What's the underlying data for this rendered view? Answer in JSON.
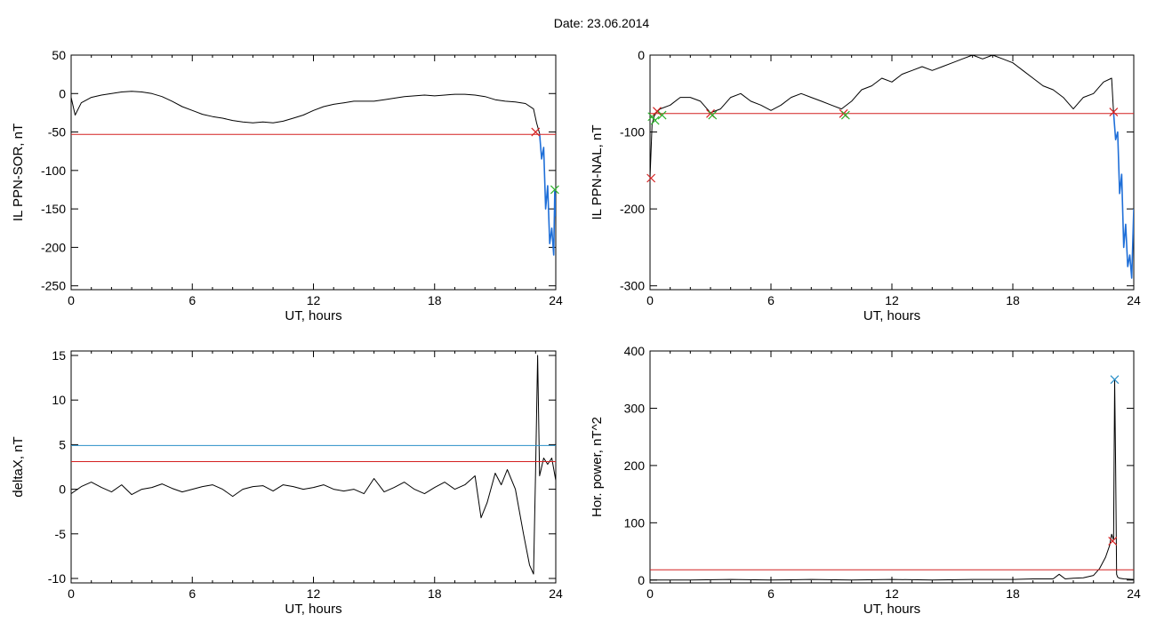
{
  "page_title": "Date:  23.06.2014",
  "colors": {
    "data": "#000000",
    "red_threshold": "#d42020",
    "blue_threshold": "#2a8fc7",
    "storm_segment": "#1f6fd8",
    "marker_green": "#2db22d"
  },
  "chart_data": [
    {
      "type": "line",
      "ylabel": "IL PPN-SOR, nT",
      "xlabel": "UT, hours",
      "xlim": [
        0,
        24
      ],
      "ylim": [
        -255,
        50
      ],
      "xticks": [
        0,
        6,
        12,
        18,
        24
      ],
      "yticks": [
        50,
        0,
        -50,
        -100,
        -150,
        -200,
        -250
      ],
      "grid": false,
      "series": [
        {
          "role": "data",
          "x": [
            0,
            0.2,
            0.5,
            1,
            1.5,
            2,
            2.5,
            3,
            3.5,
            4,
            4.5,
            5,
            5.5,
            6,
            6.5,
            7,
            7.5,
            8,
            8.5,
            9,
            9.5,
            10,
            10.5,
            11,
            11.5,
            12,
            12.5,
            13,
            13.5,
            14,
            14.5,
            15,
            15.5,
            16,
            16.5,
            17,
            17.5,
            18,
            18.5,
            19,
            19.5,
            20,
            20.5,
            21,
            21.5,
            22,
            22.5,
            22.9,
            23.05,
            23.2
          ],
          "y": [
            -5,
            -28,
            -12,
            -5,
            -2,
            0,
            2,
            3,
            2,
            0,
            -4,
            -10,
            -17,
            -22,
            -27,
            -30,
            -32,
            -35,
            -37,
            -38,
            -37,
            -38,
            -36,
            -32,
            -28,
            -22,
            -17,
            -14,
            -12,
            -10,
            -10,
            -10,
            -8,
            -6,
            -4,
            -3,
            -2,
            -3,
            -2,
            -1,
            -1,
            -2,
            -4,
            -8,
            -10,
            -11,
            -13,
            -20,
            -38,
            -52
          ]
        },
        {
          "role": "storm",
          "x": [
            23.2,
            23.3,
            23.4,
            23.5,
            23.6,
            23.7,
            23.8,
            23.9,
            23.95,
            24
          ],
          "y": [
            -52,
            -85,
            -70,
            -150,
            -120,
            -195,
            -175,
            -210,
            -125,
            -160
          ]
        },
        {
          "role": "threshold",
          "x": [
            0,
            24
          ],
          "y": [
            -53,
            -53
          ]
        }
      ],
      "markers": [
        {
          "x": 23.0,
          "y": -50,
          "color": "#d42020"
        },
        {
          "x": 23.95,
          "y": -125,
          "color": "#2db22d"
        }
      ]
    },
    {
      "type": "line",
      "ylabel": "IL PPN-NAL, nT",
      "xlabel": "UT, hours",
      "xlim": [
        0,
        24
      ],
      "ylim": [
        -305,
        0
      ],
      "xticks": [
        0,
        6,
        12,
        18,
        24
      ],
      "yticks": [
        0,
        -100,
        -200,
        -300
      ],
      "grid": false,
      "series": [
        {
          "role": "data",
          "x": [
            0,
            0.1,
            0.2,
            0.3,
            0.5,
            1,
            1.5,
            2,
            2.5,
            3,
            3.5,
            4,
            4.5,
            5,
            5.5,
            6,
            6.5,
            7,
            7.5,
            8,
            8.5,
            9,
            9.5,
            10,
            10.5,
            11,
            11.5,
            12,
            12.5,
            13,
            13.5,
            14,
            14.5,
            15,
            15.5,
            16,
            16.5,
            17,
            17.5,
            18,
            18.5,
            19,
            19.5,
            20,
            20.5,
            21,
            21.5,
            22,
            22.5,
            22.9,
            23.0
          ],
          "y": [
            -160,
            -90,
            -80,
            -75,
            -70,
            -65,
            -55,
            -55,
            -60,
            -75,
            -70,
            -55,
            -50,
            -60,
            -65,
            -72,
            -65,
            -55,
            -50,
            -55,
            -60,
            -65,
            -70,
            -60,
            -45,
            -40,
            -30,
            -35,
            -25,
            -20,
            -15,
            -20,
            -15,
            -10,
            -5,
            0,
            -5,
            0,
            -5,
            -10,
            -20,
            -30,
            -40,
            -45,
            -55,
            -70,
            -55,
            -50,
            -35,
            -30,
            -75
          ]
        },
        {
          "role": "storm",
          "x": [
            23.0,
            23.1,
            23.2,
            23.3,
            23.4,
            23.5,
            23.6,
            23.7,
            23.8,
            23.9,
            24
          ],
          "y": [
            -75,
            -110,
            -100,
            -180,
            -155,
            -250,
            -220,
            -275,
            -260,
            -290,
            -200
          ]
        },
        {
          "role": "threshold",
          "x": [
            0,
            24
          ],
          "y": [
            -76,
            -76
          ]
        }
      ],
      "markers": [
        {
          "x": 0.05,
          "y": -160,
          "color": "#d42020"
        },
        {
          "x": 0.1,
          "y": -80,
          "color": "#2db22d"
        },
        {
          "x": 0.25,
          "y": -85,
          "color": "#2db22d"
        },
        {
          "x": 0.35,
          "y": -73,
          "color": "#d42020"
        },
        {
          "x": 0.6,
          "y": -78,
          "color": "#2db22d"
        },
        {
          "x": 3.0,
          "y": -76,
          "color": "#d42020"
        },
        {
          "x": 3.1,
          "y": -78,
          "color": "#2db22d"
        },
        {
          "x": 9.6,
          "y": -76,
          "color": "#d42020"
        },
        {
          "x": 9.7,
          "y": -78,
          "color": "#2db22d"
        },
        {
          "x": 23.0,
          "y": -74,
          "color": "#d42020"
        }
      ]
    },
    {
      "type": "line",
      "ylabel": "deltaX, nT",
      "xlabel": "UT, hours",
      "xlim": [
        0,
        24
      ],
      "ylim": [
        -10.5,
        15.5
      ],
      "xticks": [
        0,
        6,
        12,
        18,
        24
      ],
      "yticks": [
        15,
        10,
        5,
        0,
        -5,
        -10
      ],
      "grid": false,
      "series": [
        {
          "role": "data",
          "x": [
            0,
            0.5,
            1,
            1.5,
            2,
            2.5,
            3,
            3.5,
            4,
            4.5,
            5,
            5.5,
            6,
            6.5,
            7,
            7.5,
            8,
            8.5,
            9,
            9.5,
            10,
            10.5,
            11,
            11.5,
            12,
            12.5,
            13,
            13.5,
            14,
            14.5,
            15,
            15.5,
            16,
            16.5,
            17,
            17.5,
            18,
            18.5,
            19,
            19.5,
            20,
            20.3,
            20.6,
            21,
            21.3,
            21.6,
            22,
            22.4,
            22.7,
            22.9,
            23.0,
            23.1,
            23.2,
            23.4,
            23.6,
            23.8,
            24
          ],
          "y": [
            -0.5,
            0.3,
            0.8,
            0.2,
            -0.3,
            0.5,
            -0.6,
            0,
            0.2,
            0.6,
            0.1,
            -0.3,
            0,
            0.3,
            0.5,
            0,
            -0.8,
            0,
            0.3,
            0.4,
            -0.2,
            0.5,
            0.3,
            0,
            0.2,
            0.5,
            0,
            -0.2,
            0,
            -0.5,
            1.2,
            -0.3,
            0.2,
            0.8,
            0,
            -0.5,
            0.2,
            0.8,
            0,
            0.5,
            1.5,
            -3.2,
            -1.5,
            1.8,
            0.5,
            2.2,
            0,
            -5,
            -8.5,
            -9.5,
            2,
            15,
            1.5,
            3.5,
            2.8,
            3.5,
            1
          ]
        },
        {
          "role": "threshold",
          "x": [
            0,
            24
          ],
          "y": [
            4.9,
            4.9
          ]
        },
        {
          "role": "threshold",
          "x": [
            0,
            24
          ],
          "y": [
            3.1,
            3.1
          ]
        }
      ],
      "markers": []
    },
    {
      "type": "line",
      "ylabel": "Hor. power, nT^2",
      "xlabel": "UT, hours",
      "xlim": [
        0,
        24
      ],
      "ylim": [
        -5,
        400
      ],
      "xticks": [
        0,
        6,
        12,
        18,
        24
      ],
      "yticks": [
        400,
        300,
        200,
        100,
        0
      ],
      "grid": false,
      "series": [
        {
          "role": "data",
          "x": [
            0,
            2,
            4,
            6,
            8,
            10,
            12,
            14,
            16,
            18,
            19,
            20,
            20.3,
            20.6,
            21,
            21.5,
            22,
            22.3,
            22.6,
            22.8,
            22.9,
            23.0,
            23.05,
            23.1,
            23.15,
            23.2,
            23.3,
            23.5,
            24
          ],
          "y": [
            0,
            0,
            1,
            0,
            1,
            0,
            1,
            0,
            1,
            1,
            2,
            2,
            10,
            2,
            3,
            4,
            8,
            20,
            40,
            60,
            80,
            70,
            350,
            200,
            10,
            5,
            3,
            2,
            1
          ]
        },
        {
          "role": "threshold",
          "x": [
            0,
            24
          ],
          "y": [
            18,
            18
          ]
        }
      ],
      "markers": [
        {
          "x": 22.95,
          "y": 68,
          "color": "#d42020"
        },
        {
          "x": 23.05,
          "y": 350,
          "color": "#2a8fc7"
        }
      ]
    }
  ]
}
